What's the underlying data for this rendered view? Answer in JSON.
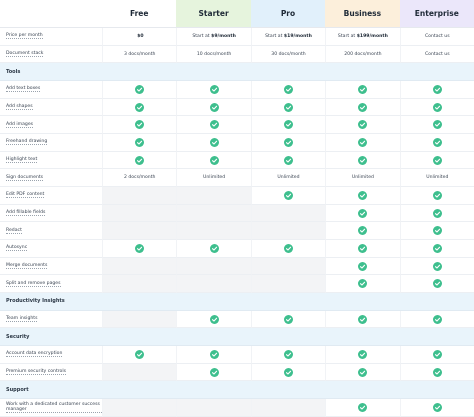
{
  "header": {
    "label": "",
    "plans": [
      "Free",
      "Starter",
      "Pro",
      "Business",
      "Enterprise"
    ]
  },
  "rows": [
    {
      "label": "Price per month",
      "cells": [
        {
          "strong": "$0"
        },
        {
          "text": "Start at",
          "strong": "$9/month"
        },
        {
          "text": "Start at",
          "strong": "$19/month"
        },
        {
          "text": "Start at",
          "strong": "$199/month"
        },
        "Contact us"
      ]
    },
    {
      "label": "Document stack",
      "cells": [
        "3 docs/month",
        "10 docs/month",
        "30 docs/month",
        "200 docs/month",
        "Contact us"
      ]
    },
    {
      "section": "Tools"
    },
    {
      "label": "Add text boxes",
      "cells": [
        true,
        true,
        true,
        true,
        true
      ]
    },
    {
      "label": "Add shapes",
      "cells": [
        true,
        true,
        true,
        true,
        true
      ]
    },
    {
      "label": "Add images",
      "cells": [
        true,
        true,
        true,
        true,
        true
      ]
    },
    {
      "label": "Freehand drawing",
      "cells": [
        true,
        true,
        true,
        true,
        true
      ]
    },
    {
      "label": "Highlight text",
      "cells": [
        true,
        true,
        true,
        true,
        true
      ]
    },
    {
      "label": "Sign documents",
      "cells": [
        "2 docs/month",
        "Unlimited",
        "Unlimited",
        "Unlimited",
        "Unlimited"
      ]
    },
    {
      "label": "Edit PDF content",
      "cells": [
        false,
        false,
        true,
        true,
        true
      ]
    },
    {
      "label": "Add fillable fields",
      "cells": [
        false,
        false,
        false,
        true,
        true
      ]
    },
    {
      "label": "Redact",
      "cells": [
        false,
        false,
        false,
        true,
        true
      ]
    },
    {
      "label": "Autosync",
      "cells": [
        true,
        true,
        true,
        true,
        true
      ]
    },
    {
      "label": "Merge documents",
      "cells": [
        false,
        false,
        false,
        true,
        true
      ]
    },
    {
      "label": "Split and remove pages",
      "cells": [
        false,
        false,
        false,
        true,
        true
      ]
    },
    {
      "section": "Productivity Insights"
    },
    {
      "label": "Team insights",
      "cells": [
        false,
        true,
        true,
        true,
        true
      ]
    },
    {
      "section": "Security"
    },
    {
      "label": "Account data encryption",
      "cells": [
        true,
        true,
        true,
        true,
        true
      ]
    },
    {
      "label": "Premium security controls",
      "cells": [
        false,
        true,
        true,
        true,
        true
      ]
    },
    {
      "section": "Support"
    },
    {
      "label": "Work with a dedicated customer success manager",
      "cells": [
        false,
        false,
        false,
        true,
        true
      ]
    }
  ]
}
